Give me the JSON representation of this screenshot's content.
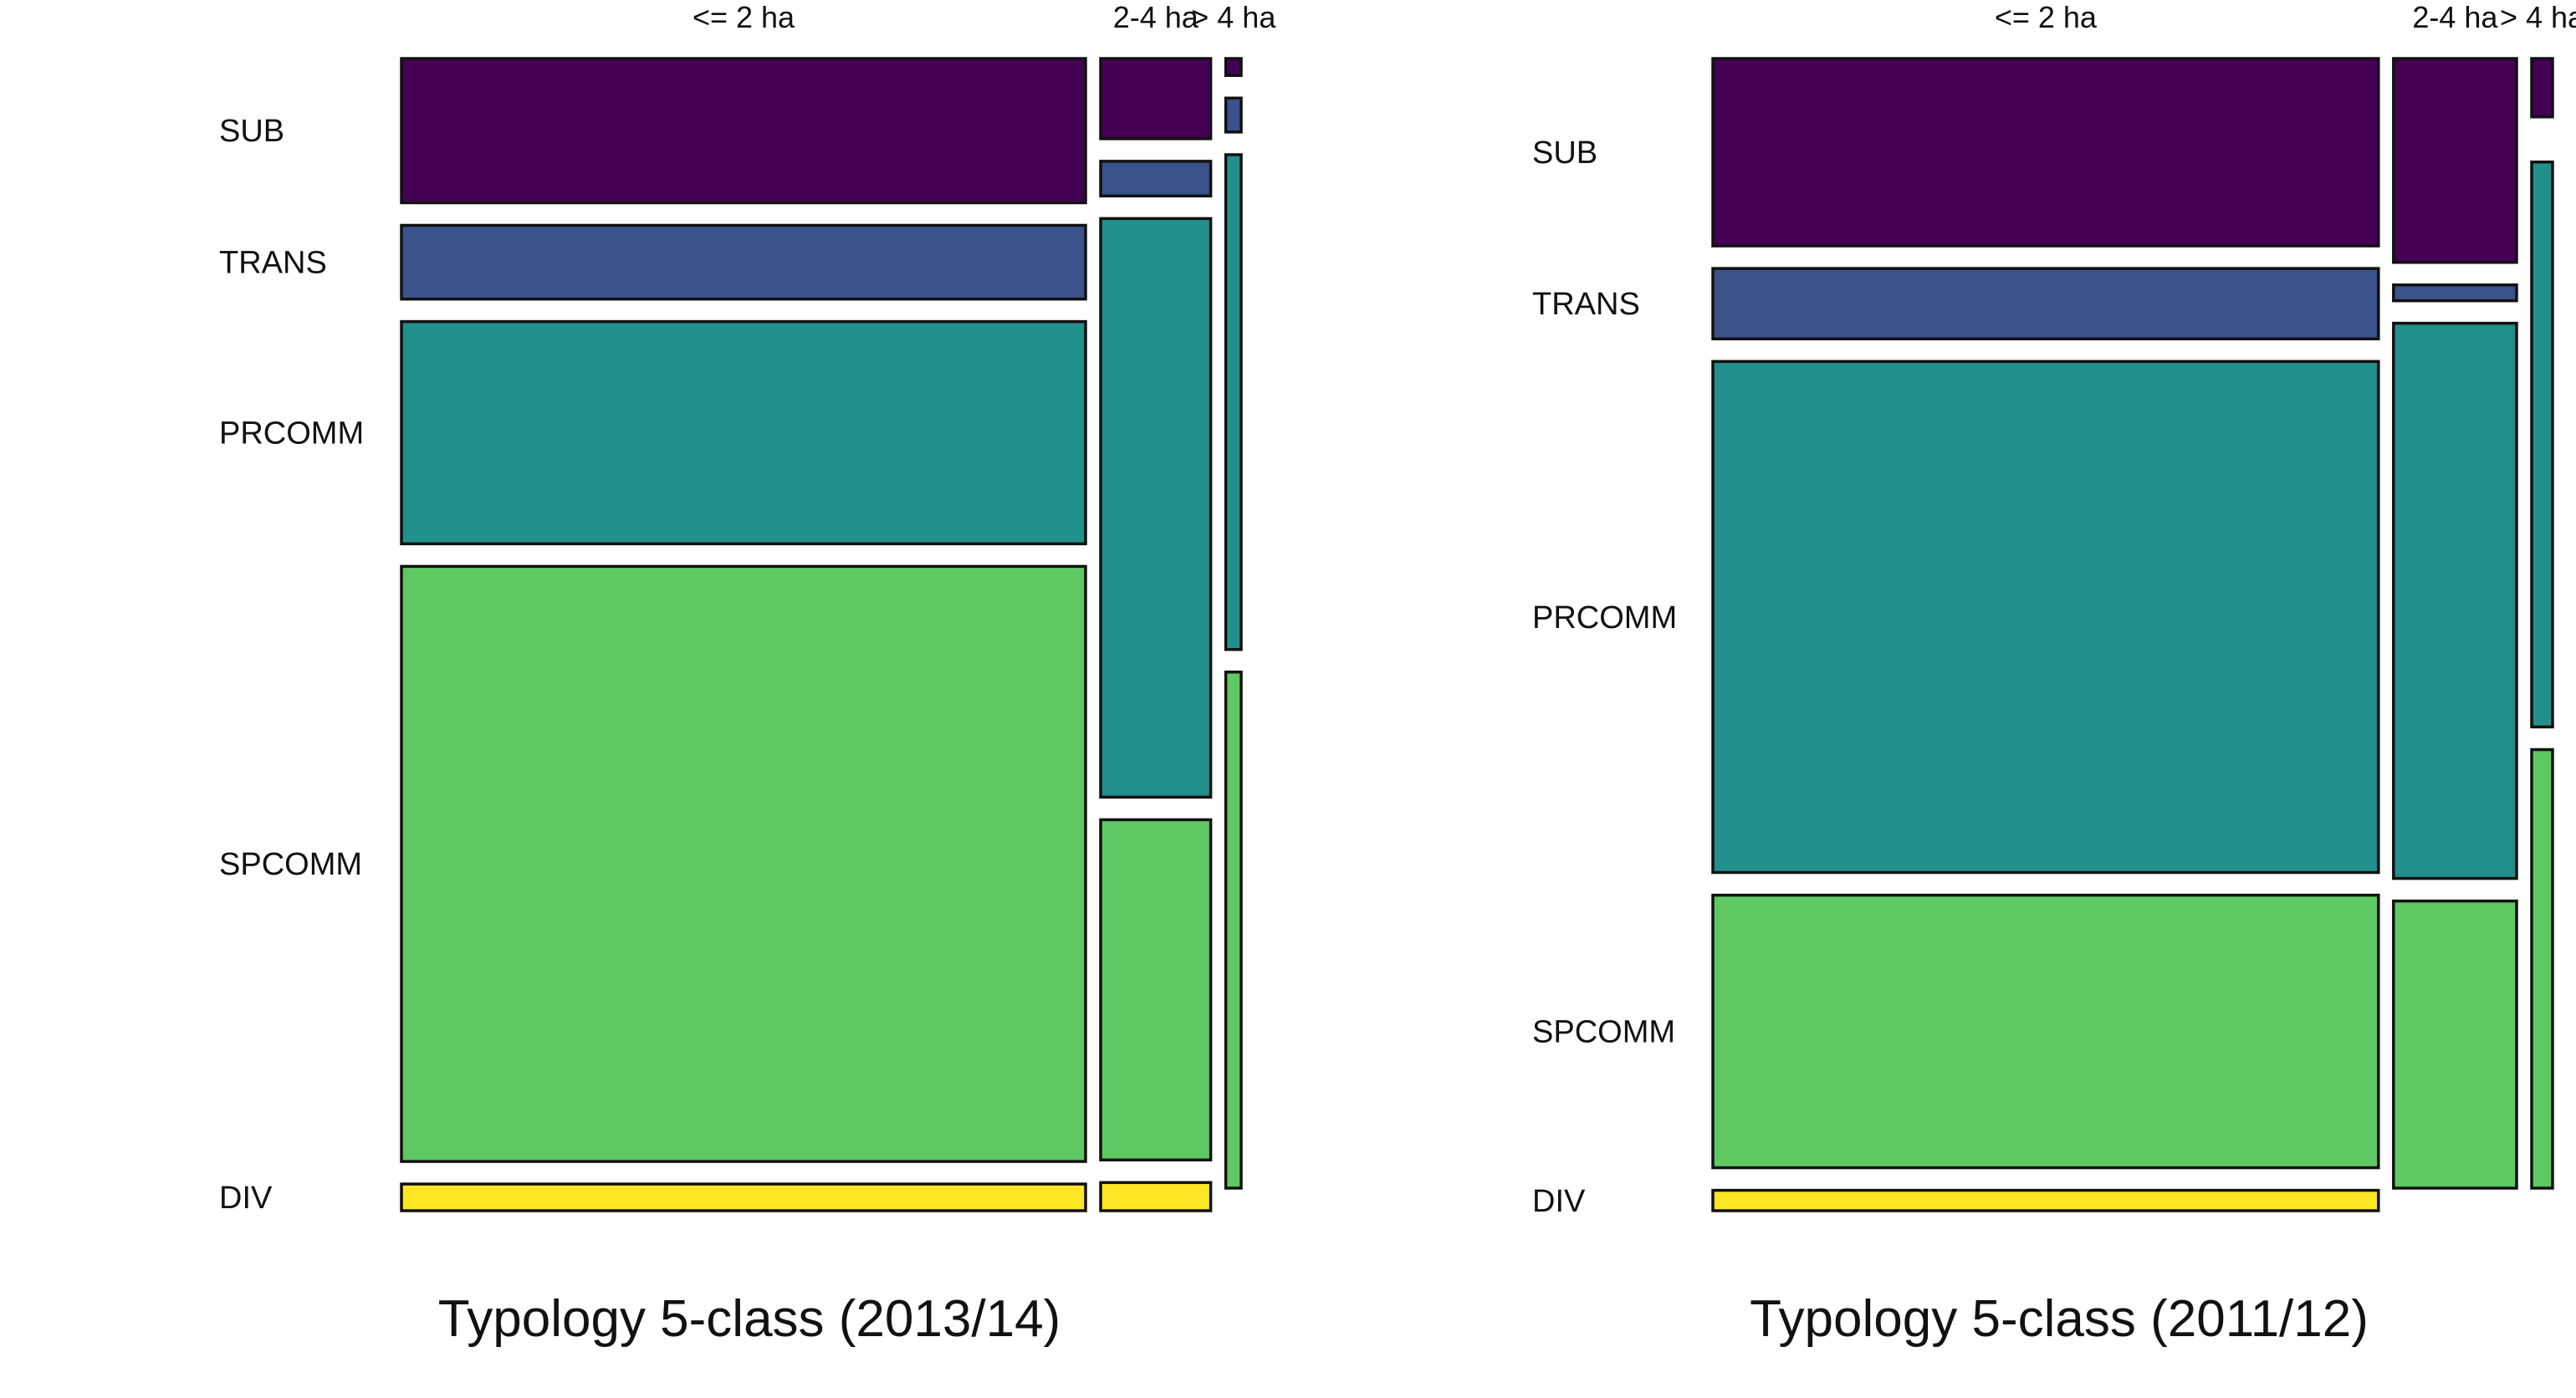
{
  "chart_data": [
    {
      "type": "mosaic",
      "title": "Typology 5-class (2013/14)",
      "columns": [
        "<= 2 ha",
        "2-4 ha",
        "> 4 ha"
      ],
      "column_shares": [
        0.845,
        0.136,
        0.019
      ],
      "rows": [
        "SUB",
        "TRANS",
        "PRCOMM",
        "SPCOMM",
        "DIV"
      ],
      "cell_shares": [
        [
          0.135,
          0.069,
          0.208,
          0.557,
          0.025
        ],
        [
          0.074,
          0.032,
          0.534,
          0.314,
          0.026
        ],
        [
          0.016,
          0.032,
          0.466,
          0.486,
          0.0
        ]
      ],
      "colors": [
        "#440154",
        "#3b528b",
        "#21908c",
        "#5ec962",
        "#fde725"
      ]
    },
    {
      "type": "mosaic",
      "title": "Typology 5-class (2011/12)",
      "columns": [
        "<= 2 ha",
        "2-4 ha",
        "> 4 ha"
      ],
      "column_shares": [
        0.827,
        0.153,
        0.026
      ],
      "rows": [
        "SUB",
        "TRANS",
        "PRCOMM",
        "SPCOMM",
        "DIV"
      ],
      "cell_shares": [
        [
          0.165,
          0.062,
          0.45,
          0.24,
          0.018
        ],
        [
          0.181,
          0.014,
          0.493,
          0.255,
          0.0
        ],
        [
          0.055,
          0.0,
          0.532,
          0.413,
          0.0
        ]
      ],
      "colors": [
        "#440154",
        "#3b528b",
        "#21908c",
        "#5ec962",
        "#fde725"
      ]
    }
  ]
}
